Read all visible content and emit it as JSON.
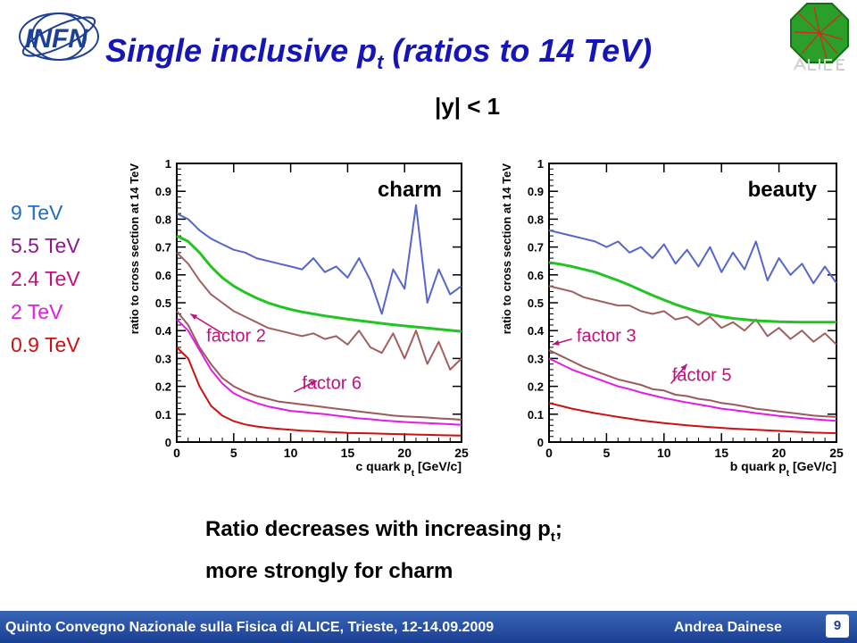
{
  "slide": {
    "title": "Single inclusive p",
    "title_sub": "t",
    "title_rest": " (ratios to 14 TeV)",
    "rapidity": "|y| < 1",
    "caption_line1_a": "Ratio decreases with increasing p",
    "caption_line1_sub": "t",
    "caption_line1_b": ";",
    "caption_line2": "more strongly for charm",
    "page_number": "9",
    "footer_conference": "Quinto Convegno Nazionale sulla Fisica di ALICE, Trieste, 12-14.09.2009",
    "footer_author": "Andrea Dainese",
    "logo_infn": "INFN"
  },
  "legend": [
    {
      "label": "9 TeV",
      "color": "#1f6fc2"
    },
    {
      "label": "5.5 TeV",
      "color": "#8a1a8c"
    },
    {
      "label": "2.4 TeV",
      "color": "#c2117a"
    },
    {
      "label": "2 TeV",
      "color": "#e21ce2"
    },
    {
      "label": "0.9 TeV",
      "color": "#cc1111"
    }
  ],
  "chart_data": [
    {
      "type": "line",
      "panel_label": "charm",
      "xlabel_a": "c quark p",
      "xlabel_sub": "t",
      "xlabel_b": " [GeV/c]",
      "ylabel": "ratio to cross section at 14 TeV",
      "xlim": [
        0,
        25
      ],
      "ylim": [
        0,
        1
      ],
      "xticks": [
        "0",
        "5",
        "10",
        "15",
        "20",
        "25"
      ],
      "yticks": [
        "0",
        "0.1",
        "0.2",
        "0.3",
        "0.4",
        "0.5",
        "0.6",
        "0.7",
        "0.8",
        "0.9",
        "1"
      ],
      "x": [
        0,
        1,
        2,
        3,
        4,
        5,
        6,
        7,
        8,
        9,
        10,
        11,
        12,
        13,
        14,
        15,
        16,
        17,
        18,
        19,
        20,
        21,
        22,
        23,
        24,
        25
      ],
      "series": [
        {
          "key": "9 TeV",
          "color": "#5566cc",
          "values": [
            0.82,
            0.8,
            0.76,
            0.73,
            0.71,
            0.69,
            0.68,
            0.66,
            0.65,
            0.64,
            0.63,
            0.62,
            0.66,
            0.61,
            0.63,
            0.59,
            0.66,
            0.58,
            0.46,
            0.62,
            0.55,
            0.85,
            0.5,
            0.62,
            0.53,
            0.56
          ]
        },
        {
          "key": "2.4 TeV x2",
          "color": "#a0605e",
          "values": [
            0.68,
            0.64,
            0.58,
            0.53,
            0.5,
            0.47,
            0.45,
            0.43,
            0.41,
            0.4,
            0.39,
            0.38,
            0.39,
            0.37,
            0.38,
            0.35,
            0.4,
            0.34,
            0.32,
            0.39,
            0.3,
            0.4,
            0.28,
            0.36,
            0.26,
            0.3
          ]
        },
        {
          "key": "5.5 TeV",
          "color": "#22c422",
          "values": [
            0.74,
            0.72,
            0.68,
            0.63,
            0.59,
            0.56,
            0.537,
            0.517,
            0.5,
            0.487,
            0.476,
            0.467,
            0.46,
            0.453,
            0.447,
            0.441,
            0.436,
            0.431,
            0.426,
            0.421,
            0.417,
            0.413,
            0.409,
            0.405,
            0.401,
            0.397
          ]
        },
        {
          "key": "2 TeV x6",
          "color": "#9b5a5a",
          "values": [
            0.47,
            0.42,
            0.34,
            0.28,
            0.23,
            0.2,
            0.18,
            0.165,
            0.155,
            0.145,
            0.14,
            0.135,
            0.13,
            0.125,
            0.12,
            0.115,
            0.11,
            0.105,
            0.1,
            0.095,
            0.092,
            0.09,
            0.088,
            0.085,
            0.083,
            0.08
          ]
        },
        {
          "key": "2 TeV",
          "color": "#e21ce2",
          "values": [
            0.44,
            0.4,
            0.33,
            0.26,
            0.21,
            0.175,
            0.155,
            0.14,
            0.128,
            0.12,
            0.112,
            0.108,
            0.104,
            0.1,
            0.095,
            0.09,
            0.085,
            0.082,
            0.078,
            0.075,
            0.072,
            0.07,
            0.068,
            0.066,
            0.064,
            0.062
          ]
        },
        {
          "key": "0.9 TeV",
          "color": "#cc1111",
          "values": [
            0.34,
            0.3,
            0.2,
            0.13,
            0.095,
            0.075,
            0.063,
            0.056,
            0.051,
            0.047,
            0.044,
            0.041,
            0.039,
            0.037,
            0.035,
            0.033,
            0.032,
            0.031,
            0.03,
            0.029,
            0.028,
            0.027,
            0.026,
            0.025,
            0.024,
            0.023
          ]
        }
      ],
      "annotations": [
        {
          "text": "factor 2",
          "color": "#c2117a",
          "x": 2.6,
          "y": 0.36,
          "arrow_from": [
            4.0,
            0.39
          ],
          "arrow_to": [
            1.2,
            0.46
          ]
        },
        {
          "text": "factor 6",
          "color": "#c2117a",
          "x": 11.0,
          "y": 0.19,
          "arrow_from": [
            10.3,
            0.18
          ],
          "arrow_to": [
            12.3,
            0.22
          ]
        }
      ]
    },
    {
      "type": "line",
      "panel_label": "beauty",
      "xlabel_a": "b quark p",
      "xlabel_sub": "t",
      "xlabel_b": " [GeV/c]",
      "ylabel": "ratio to cross section at 14 TeV",
      "xlim": [
        0,
        25
      ],
      "ylim": [
        0,
        1
      ],
      "xticks": [
        "0",
        "5",
        "10",
        "15",
        "20",
        "25"
      ],
      "yticks": [
        "0",
        "0.1",
        "0.2",
        "0.3",
        "0.4",
        "0.5",
        "0.6",
        "0.7",
        "0.8",
        "0.9",
        "1"
      ],
      "x": [
        0,
        1,
        2,
        3,
        4,
        5,
        6,
        7,
        8,
        9,
        10,
        11,
        12,
        13,
        14,
        15,
        16,
        17,
        18,
        19,
        20,
        21,
        22,
        23,
        24,
        25
      ],
      "series": [
        {
          "key": "9 TeV",
          "color": "#5566cc",
          "values": [
            0.76,
            0.75,
            0.74,
            0.73,
            0.72,
            0.7,
            0.72,
            0.68,
            0.7,
            0.66,
            0.71,
            0.64,
            0.69,
            0.63,
            0.7,
            0.61,
            0.68,
            0.62,
            0.72,
            0.58,
            0.66,
            0.6,
            0.64,
            0.57,
            0.63,
            0.57
          ]
        },
        {
          "key": "2.4 TeV x3",
          "color": "#a0605e",
          "values": [
            0.56,
            0.55,
            0.54,
            0.52,
            0.51,
            0.5,
            0.49,
            0.49,
            0.47,
            0.46,
            0.47,
            0.44,
            0.45,
            0.42,
            0.45,
            0.41,
            0.43,
            0.4,
            0.44,
            0.38,
            0.41,
            0.37,
            0.4,
            0.36,
            0.39,
            0.35
          ]
        },
        {
          "key": "5.5 TeV",
          "color": "#22c422",
          "values": [
            0.645,
            0.638,
            0.63,
            0.62,
            0.61,
            0.595,
            0.58,
            0.563,
            0.545,
            0.527,
            0.51,
            0.494,
            0.48,
            0.468,
            0.458,
            0.45,
            0.444,
            0.44,
            0.436,
            0.434,
            0.432,
            0.431,
            0.43,
            0.43,
            0.43,
            0.43
          ]
        },
        {
          "key": "2 TeV x5",
          "color": "#9b5a5a",
          "values": [
            0.33,
            0.31,
            0.29,
            0.27,
            0.255,
            0.24,
            0.225,
            0.215,
            0.205,
            0.19,
            0.185,
            0.17,
            0.165,
            0.155,
            0.15,
            0.14,
            0.135,
            0.128,
            0.12,
            0.115,
            0.11,
            0.105,
            0.1,
            0.095,
            0.092,
            0.09
          ]
        },
        {
          "key": "2 TeV",
          "color": "#e21ce2",
          "values": [
            0.3,
            0.28,
            0.26,
            0.245,
            0.23,
            0.215,
            0.2,
            0.19,
            0.178,
            0.168,
            0.158,
            0.15,
            0.142,
            0.135,
            0.128,
            0.12,
            0.115,
            0.11,
            0.104,
            0.099,
            0.094,
            0.09,
            0.086,
            0.082,
            0.079,
            0.076
          ]
        },
        {
          "key": "0.9 TeV",
          "color": "#cc1111",
          "values": [
            0.14,
            0.13,
            0.12,
            0.112,
            0.104,
            0.097,
            0.09,
            0.084,
            0.078,
            0.073,
            0.068,
            0.064,
            0.06,
            0.057,
            0.054,
            0.051,
            0.048,
            0.046,
            0.044,
            0.042,
            0.04,
            0.038,
            0.036,
            0.034,
            0.033,
            0.032
          ]
        }
      ],
      "annotations": [
        {
          "text": "factor 3",
          "color": "#c2117a",
          "x": 2.4,
          "y": 0.36,
          "arrow_from": [
            2.0,
            0.37
          ],
          "arrow_to": [
            0.3,
            0.35
          ]
        },
        {
          "text": "factor 5",
          "color": "#c2117a",
          "x": 10.7,
          "y": 0.22,
          "arrow_from": [
            10.6,
            0.21
          ],
          "arrow_to": [
            12.0,
            0.28
          ]
        }
      ]
    }
  ]
}
